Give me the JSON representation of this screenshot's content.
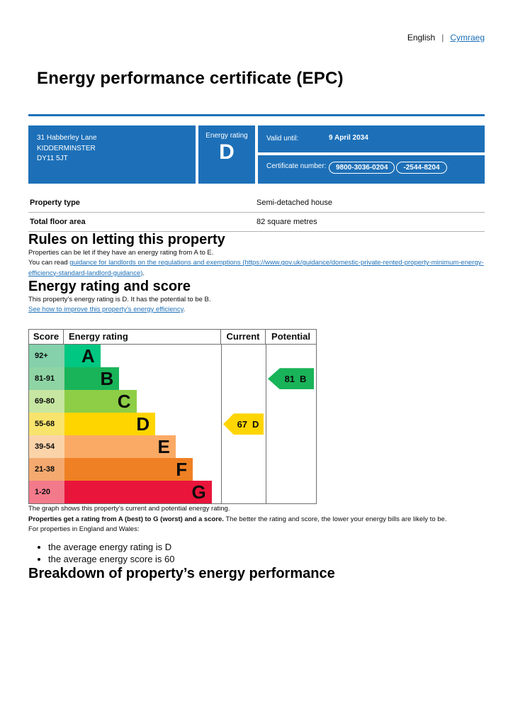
{
  "theme": {
    "accent_blue": "#1d70b8",
    "text_black": "#0b0c0c",
    "border_grey": "#b1b4b6"
  },
  "header": {
    "language_current": "English",
    "language_separator": "|",
    "language_link": "Cymraeg",
    "title": "Energy performance certificate (EPC)"
  },
  "banner": {
    "address_lines": [
      "31 Habberley Lane",
      "KIDDERMINSTER",
      "DY11 5JT"
    ],
    "energy_rating_label": "Energy rating",
    "energy_rating": "D",
    "valid_until_label": "Valid until:",
    "valid_until_value": "9 April 2034",
    "certificate_number_label": "Certificate number:",
    "certificate_number_parts": [
      "9800-3036-0204",
      "-2544-8204"
    ]
  },
  "summary": {
    "rows": [
      {
        "label": "Property type",
        "value": "Semi-detached house"
      },
      {
        "label": "Total floor area",
        "value": "82 square metres"
      }
    ]
  },
  "rules": {
    "heading": "Rules on letting this property",
    "p1": "Properties can be let if they have an energy rating from A to E.",
    "p2_prefix": "You can read ",
    "p2_link": "guidance for landlords on the regulations and exemptions (https://www.gov.uk/guidance/domestic-private-rented-property-minimum-energy-efficiency-standard-landlord-guidance)",
    "p2_suffix": "."
  },
  "rating_section": {
    "heading": "Energy rating and score",
    "p1": "This property’s energy rating is D. It has the potential to be B.",
    "improve_link": "See how to improve this property’s energy efficiency",
    "improve_suffix": "."
  },
  "chart_data": {
    "type": "bar",
    "title": "Energy rating and score",
    "headers": [
      "Score",
      "Energy rating",
      "Current",
      "Potential"
    ],
    "bands": [
      {
        "score": "92+",
        "letter": "A",
        "color": "#00c781",
        "score_bg": "#84d1ab",
        "width_pct": 23
      },
      {
        "score": "81-91",
        "letter": "B",
        "color": "#19b459",
        "score_bg": "#8ed4a4",
        "width_pct": 35
      },
      {
        "score": "69-80",
        "letter": "C",
        "color": "#8dce46",
        "score_bg": "#c6e6a1",
        "width_pct": 46
      },
      {
        "score": "55-68",
        "letter": "D",
        "color": "#ffd500",
        "score_bg": "#f8e36d",
        "width_pct": 58
      },
      {
        "score": "39-54",
        "letter": "E",
        "color": "#fbaa65",
        "score_bg": "#fbd3a9",
        "width_pct": 71
      },
      {
        "score": "21-38",
        "letter": "F",
        "color": "#ef8023",
        "score_bg": "#f4a96f",
        "width_pct": 82
      },
      {
        "score": "1-20",
        "letter": "G",
        "color": "#e9153b",
        "score_bg": "#f27a8b",
        "width_pct": 94
      }
    ],
    "current": {
      "score": 67,
      "letter": "D",
      "band_index": 3,
      "color": "#ffd500"
    },
    "potential": {
      "score": 81,
      "letter": "B",
      "band_index": 1,
      "color": "#19b459"
    }
  },
  "graph_notes": {
    "p1": "The graph shows this property’s current and potential energy rating.",
    "p2_bold": "Properties get a rating from A (best) to G (worst) and a score.",
    "p2_rest": " The better the rating and score, the lower your energy bills are likely to be.",
    "p3": "For properties in England and Wales:",
    "bullets": [
      "the average energy rating is D",
      "the average energy score is 60"
    ]
  },
  "breakdown": {
    "heading": "Breakdown of property’s energy performance"
  }
}
